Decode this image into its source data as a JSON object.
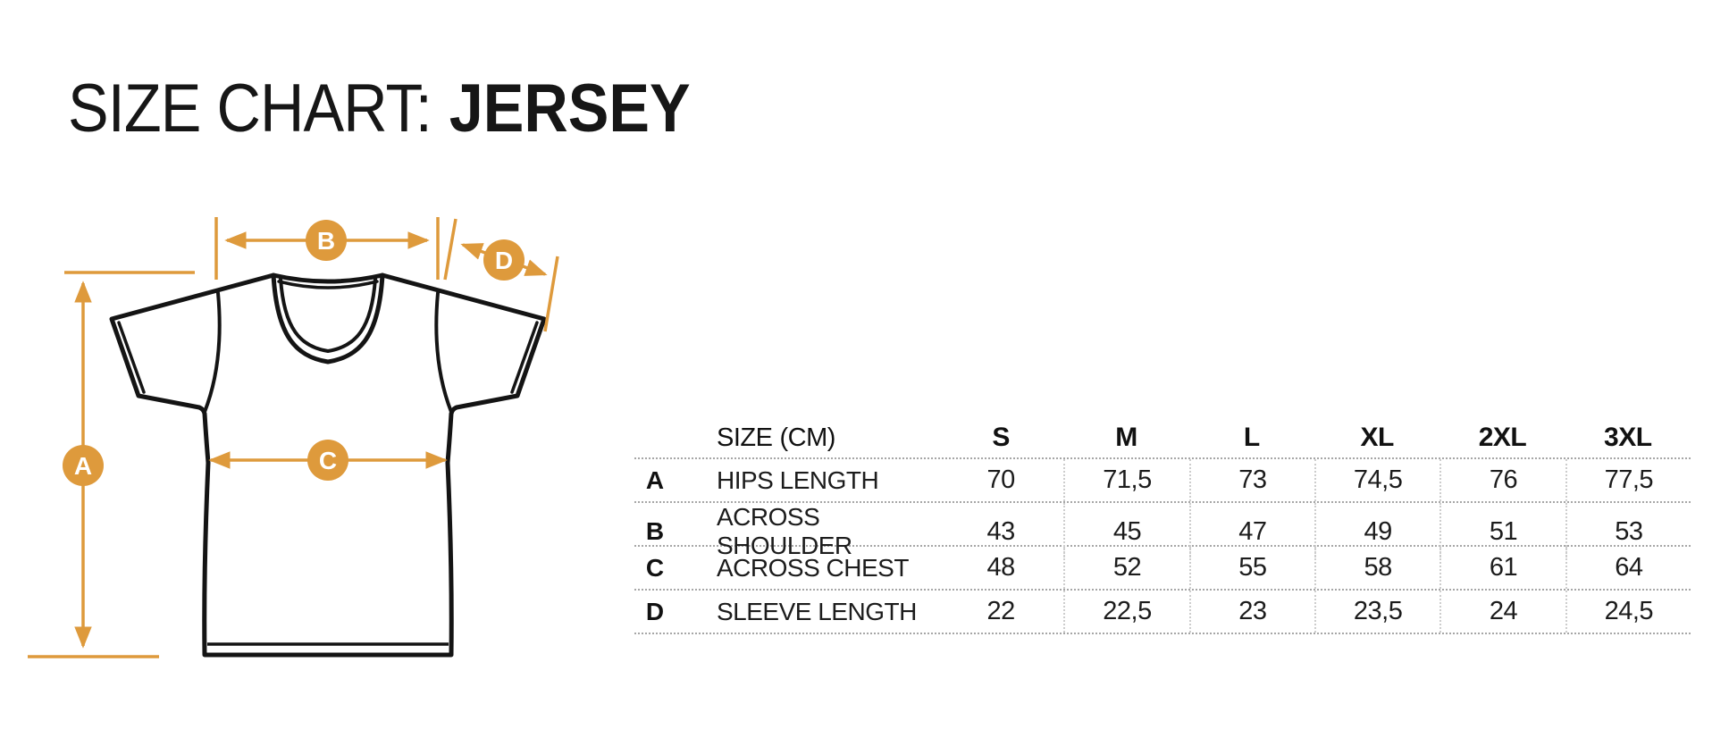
{
  "title": {
    "prefix": "SIZE CHART:",
    "product": "JERSEY"
  },
  "diagram": {
    "accent_color": "#DE9A3C",
    "outline_color": "#141414",
    "labels": {
      "a": "A",
      "b": "B",
      "c": "C",
      "d": "D"
    }
  },
  "table": {
    "header": {
      "size_label": "SIZE",
      "unit_label": "(CM)",
      "sizes": [
        "S",
        "M",
        "L",
        "XL",
        "2XL",
        "3XL"
      ]
    },
    "rows": [
      {
        "key": "A",
        "label": "HIPS LENGTH",
        "values": [
          "70",
          "71,5",
          "73",
          "74,5",
          "76",
          "77,5"
        ]
      },
      {
        "key": "B",
        "label": "ACROSS SHOULDER",
        "values": [
          "43",
          "45",
          "47",
          "49",
          "51",
          "53"
        ]
      },
      {
        "key": "C",
        "label": "ACROSS CHEST",
        "values": [
          "48",
          "52",
          "55",
          "58",
          "61",
          "64"
        ]
      },
      {
        "key": "D",
        "label": "SLEEVE LENGTH",
        "values": [
          "22",
          "22,5",
          "23",
          "23,5",
          "24",
          "24,5"
        ]
      }
    ]
  },
  "chart_data": {
    "type": "table",
    "title": "SIZE CHART: JERSEY",
    "unit": "cm",
    "categories": [
      "S",
      "M",
      "L",
      "XL",
      "2XL",
      "3XL"
    ],
    "series": [
      {
        "name": "A HIPS LENGTH",
        "values": [
          70,
          71.5,
          73,
          74.5,
          76,
          77.5
        ]
      },
      {
        "name": "B ACROSS SHOULDER",
        "values": [
          43,
          45,
          47,
          49,
          51,
          53
        ]
      },
      {
        "name": "C ACROSS CHEST",
        "values": [
          48,
          52,
          55,
          58,
          61,
          64
        ]
      },
      {
        "name": "D SLEEVE LENGTH",
        "values": [
          22,
          22.5,
          23,
          23.5,
          24,
          24.5
        ]
      }
    ],
    "layout": "measurement diagram of t-shirt on left with arrows A (hips length, vertical), B (across shoulder, horizontal top), C (across chest, horizontal middle), D (sleeve length, diagonal); data table on right"
  }
}
